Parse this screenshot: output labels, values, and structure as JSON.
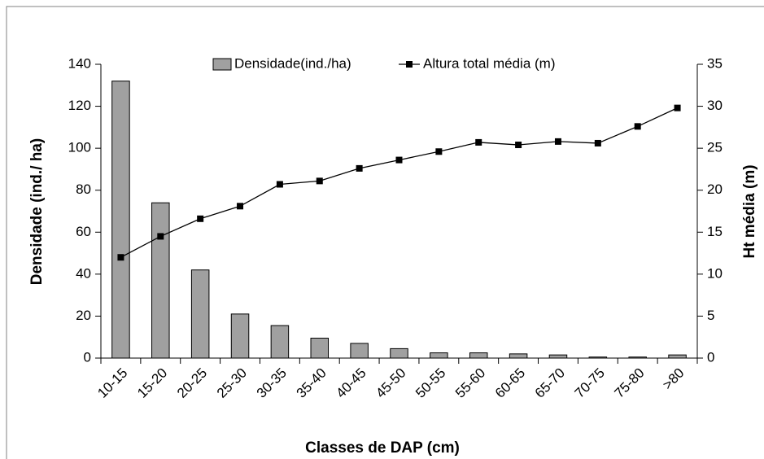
{
  "chart_data": {
    "type": "bar",
    "x_label": "Classes de DAP (cm)",
    "y_label": "Densidade (ind./ ha)",
    "y2_label": "Ht média (m)",
    "categories": [
      "10-15",
      "15-20",
      "20-25",
      "25-30",
      "30-35",
      "35-40",
      "40-45",
      "45-50",
      "50-55",
      "55-60",
      "60-65",
      "65-70",
      "70-75",
      "75-80",
      ">80"
    ],
    "series": [
      {
        "name": "Densidade(ind./ha)",
        "type": "bar",
        "color": "#a0a0a0",
        "values": [
          132,
          74,
          42,
          21,
          15.5,
          9.5,
          7,
          4.5,
          2.5,
          2.5,
          2,
          1.5,
          0.5,
          0.5,
          1.5
        ]
      },
      {
        "name": "Altura total média (m)",
        "type": "line",
        "axis": "y2",
        "color": "#000000",
        "values": [
          12,
          14.5,
          16.6,
          18.1,
          20.7,
          21.1,
          22.6,
          23.6,
          24.6,
          25.7,
          25.4,
          25.8,
          25.6,
          27.6,
          29.8
        ]
      }
    ],
    "ylim": [
      0,
      140
    ],
    "yticks": [
      0,
      20,
      40,
      60,
      80,
      100,
      120,
      140
    ],
    "y2lim": [
      0,
      35
    ],
    "y2ticks": [
      0,
      5,
      10,
      15,
      20,
      25,
      30,
      35
    ],
    "legend": "top",
    "grid": false
  }
}
